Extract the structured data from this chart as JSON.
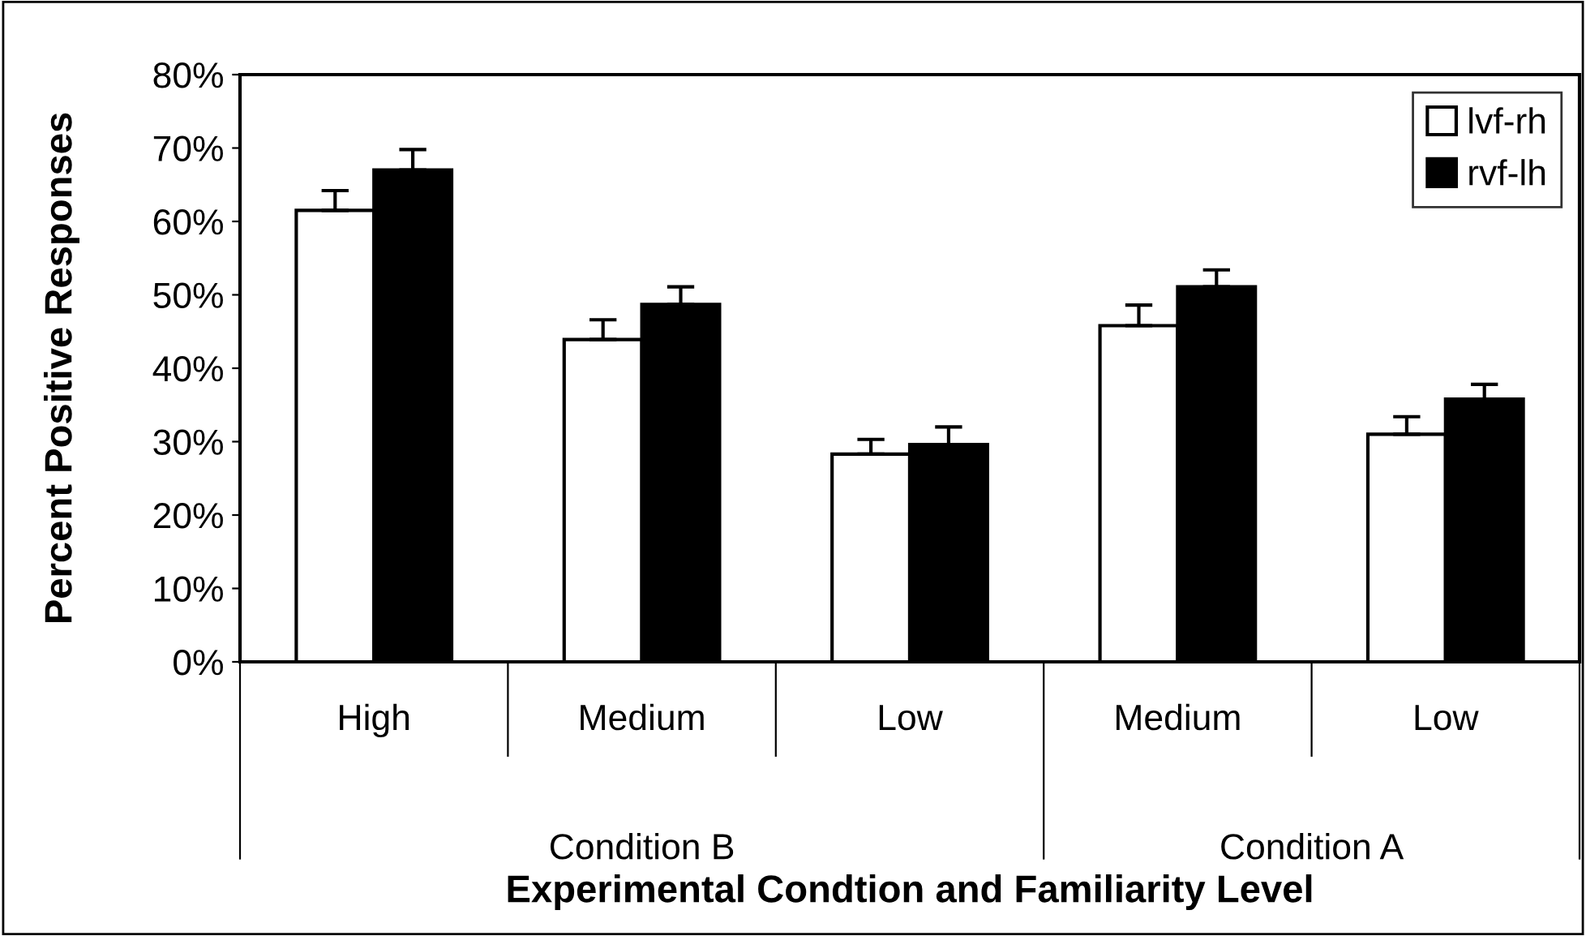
{
  "chart_data": {
    "type": "bar",
    "xlabel": "Experimental Condtion and Familiarity Level",
    "ylabel": "Percent Positive Responses",
    "categories": [
      "High",
      "Medium",
      "Low",
      "Medium",
      "Low"
    ],
    "annotations": [
      "Condition B",
      "Condition A"
    ],
    "series": [
      {
        "name": "lvf-rh",
        "color": "#ffffff",
        "values": [
          61.5,
          43.9,
          28.3,
          45.8,
          31.0
        ],
        "errors": [
          [
            61.5,
            64.2
          ],
          [
            43.9,
            46.6
          ],
          [
            28.3,
            30.3
          ],
          [
            45.8,
            48.6
          ],
          [
            31.0,
            33.4
          ]
        ]
      },
      {
        "name": "rvf-lh",
        "color": "#000000",
        "values": [
          67.0,
          48.7,
          29.6,
          51.1,
          35.8
        ],
        "errors": [
          [
            67.0,
            69.8
          ],
          [
            48.7,
            51.1
          ],
          [
            29.6,
            32.0
          ],
          [
            51.1,
            53.4
          ],
          [
            35.8,
            37.8
          ]
        ]
      }
    ],
    "ylim": [
      0,
      80
    ],
    "yticks": [
      {
        "value": 0,
        "label": "0%"
      },
      {
        "value": 10,
        "label": "10%"
      },
      {
        "value": 20,
        "label": "20%"
      },
      {
        "value": 30,
        "label": "30%"
      },
      {
        "value": 40,
        "label": "40%"
      },
      {
        "value": 50,
        "label": "50%"
      },
      {
        "value": 60,
        "label": "60%"
      },
      {
        "value": 70,
        "label": "70%"
      },
      {
        "value": 80,
        "label": "80%"
      }
    ],
    "grid": false,
    "legend": "top right"
  }
}
